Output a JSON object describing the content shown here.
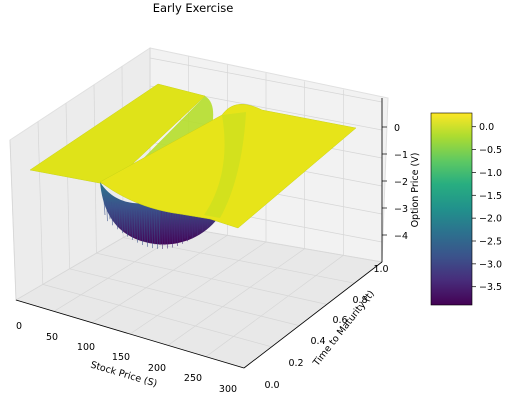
{
  "chart_data": {
    "type": "surface3d",
    "title": "Early Exercise",
    "xlabel": "Stock Price (S)",
    "ylabel": "Time to Maturity (t)",
    "zlabel": "Option Price (V)",
    "xlim": [
      0,
      300
    ],
    "ylim": [
      0,
      1.0
    ],
    "zlim": [
      -4.5,
      0.3
    ],
    "xticks": [
      "0",
      "50",
      "100",
      "150",
      "200",
      "250",
      "300"
    ],
    "yticks": [
      "0.0",
      "0.2",
      "0.4",
      "0.6",
      "0.8",
      "1.0"
    ],
    "zticks": [
      "0",
      "−1",
      "−2",
      "−3",
      "−4"
    ],
    "colorbar": {
      "colormap": "viridis",
      "range": [
        -3.9,
        0.3
      ],
      "ticks": [
        "0.0",
        "−0.5",
        "−1.0",
        "−1.5",
        "−2.0",
        "−2.5",
        "−3.0",
        "−3.5"
      ]
    },
    "surface": {
      "description_values": "flat plateau near 0 at low and high stock prices; trough down to about -3.9 near S≈100 at small t",
      "plateau_value": 0.0,
      "min_value": -3.9,
      "trough_center_S": 100
    },
    "colors": {
      "plateau": "#e7e419",
      "low": "#440154",
      "mid": "#21918c",
      "pane": "#f2f2f2",
      "grid": "#d9d9d9"
    }
  }
}
